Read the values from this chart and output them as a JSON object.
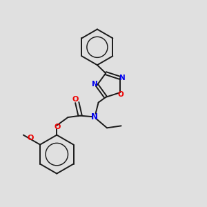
{
  "background_color": "#e0e0e0",
  "bond_color": "#1a1a1a",
  "N_color": "#0000ee",
  "O_color": "#ee0000",
  "figsize": [
    3.0,
    3.0
  ],
  "dpi": 100,
  "xlim": [
    0,
    10
  ],
  "ylim": [
    0,
    10
  ]
}
